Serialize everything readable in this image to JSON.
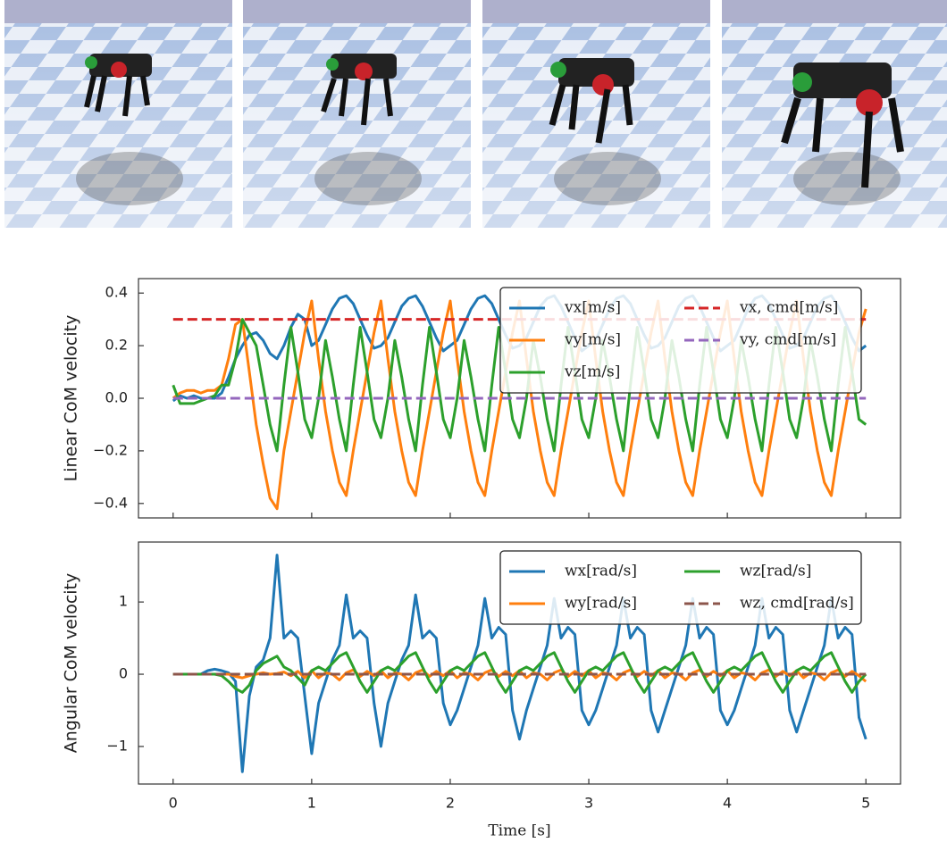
{
  "chart_data": [
    {
      "type": "line",
      "y_label": "Linear CoM velocity",
      "x": [
        0,
        0.05,
        0.1,
        0.15,
        0.2,
        0.25,
        0.3,
        0.35,
        0.4,
        0.45,
        0.5,
        0.55,
        0.6,
        0.65,
        0.7,
        0.75,
        0.8,
        0.85,
        0.9,
        0.95,
        1,
        1.05,
        1.1,
        1.15,
        1.2,
        1.25,
        1.3,
        1.35,
        1.4,
        1.45,
        1.5,
        1.55,
        1.6,
        1.65,
        1.7,
        1.75,
        1.8,
        1.85,
        1.9,
        1.95,
        2,
        2.05,
        2.1,
        2.15,
        2.2,
        2.25,
        2.3,
        2.35,
        2.4,
        2.45,
        2.5,
        2.55,
        2.6,
        2.65,
        2.7,
        2.75,
        2.8,
        2.85,
        2.9,
        2.95,
        3,
        3.05,
        3.1,
        3.15,
        3.2,
        3.25,
        3.3,
        3.35,
        3.4,
        3.45,
        3.5,
        3.55,
        3.6,
        3.65,
        3.7,
        3.75,
        3.8,
        3.85,
        3.9,
        3.95,
        4,
        4.05,
        4.1,
        4.15,
        4.2,
        4.25,
        4.3,
        4.35,
        4.4,
        4.45,
        4.5,
        4.55,
        4.6,
        4.65,
        4.7,
        4.75,
        4.8,
        4.85,
        4.9,
        4.95,
        5
      ],
      "series": [
        {
          "name": "vx[m/s]",
          "color": "#1f77b4",
          "values": [
            -0.01,
            0.01,
            0.0,
            0.01,
            0.0,
            0.0,
            0.0,
            0.02,
            0.08,
            0.15,
            0.2,
            0.24,
            0.25,
            0.22,
            0.17,
            0.15,
            0.2,
            0.27,
            0.32,
            0.3,
            0.2,
            0.22,
            0.28,
            0.34,
            0.38,
            0.39,
            0.36,
            0.3,
            0.24,
            0.19,
            0.2,
            0.23,
            0.29,
            0.35,
            0.38,
            0.39,
            0.35,
            0.29,
            0.23,
            0.18,
            0.2,
            0.22,
            0.28,
            0.34,
            0.38,
            0.39,
            0.36,
            0.3,
            0.24,
            0.19,
            0.2,
            0.23,
            0.29,
            0.35,
            0.38,
            0.39,
            0.35,
            0.29,
            0.23,
            0.18,
            0.2,
            0.22,
            0.28,
            0.34,
            0.38,
            0.39,
            0.36,
            0.3,
            0.24,
            0.19,
            0.2,
            0.23,
            0.29,
            0.35,
            0.38,
            0.39,
            0.35,
            0.29,
            0.23,
            0.18,
            0.2,
            0.22,
            0.28,
            0.34,
            0.38,
            0.39,
            0.36,
            0.3,
            0.24,
            0.19,
            0.2,
            0.23,
            0.29,
            0.35,
            0.38,
            0.39,
            0.35,
            0.29,
            0.23,
            0.18,
            0.2
          ]
        },
        {
          "name": "vy[m/s]",
          "color": "#ff7f0e",
          "values": [
            0.0,
            0.02,
            0.03,
            0.03,
            0.02,
            0.03,
            0.03,
            0.05,
            0.15,
            0.28,
            0.3,
            0.1,
            -0.1,
            -0.25,
            -0.38,
            -0.42,
            -0.2,
            -0.05,
            0.1,
            0.25,
            0.37,
            0.15,
            -0.05,
            -0.2,
            -0.32,
            -0.37,
            -0.2,
            -0.05,
            0.1,
            0.25,
            0.37,
            0.15,
            -0.05,
            -0.2,
            -0.32,
            -0.37,
            -0.2,
            -0.05,
            0.1,
            0.25,
            0.37,
            0.15,
            -0.05,
            -0.2,
            -0.32,
            -0.37,
            -0.2,
            -0.05,
            0.1,
            0.25,
            0.37,
            0.15,
            -0.05,
            -0.2,
            -0.32,
            -0.37,
            -0.2,
            -0.05,
            0.1,
            0.25,
            0.37,
            0.15,
            -0.05,
            -0.2,
            -0.32,
            -0.37,
            -0.2,
            -0.05,
            0.1,
            0.25,
            0.37,
            0.15,
            -0.05,
            -0.2,
            -0.32,
            -0.37,
            -0.2,
            -0.05,
            0.1,
            0.25,
            0.37,
            0.15,
            -0.05,
            -0.2,
            -0.32,
            -0.37,
            -0.2,
            -0.05,
            0.1,
            0.25,
            0.37,
            0.15,
            -0.05,
            -0.2,
            -0.32,
            -0.37,
            -0.2,
            -0.05,
            0.1,
            0.25,
            0.34
          ]
        },
        {
          "name": "vz[m/s]",
          "color": "#2ca02c",
          "values": [
            0.05,
            -0.02,
            -0.02,
            -0.02,
            -0.01,
            0.0,
            0.01,
            0.05,
            0.05,
            0.15,
            0.3,
            0.25,
            0.2,
            0.05,
            -0.1,
            -0.2,
            0.05,
            0.27,
            0.1,
            -0.08,
            -0.15,
            0.0,
            0.22,
            0.08,
            -0.08,
            -0.2,
            0.05,
            0.27,
            0.1,
            -0.08,
            -0.15,
            0.0,
            0.22,
            0.08,
            -0.08,
            -0.2,
            0.05,
            0.27,
            0.1,
            -0.08,
            -0.15,
            0.0,
            0.22,
            0.08,
            -0.08,
            -0.2,
            0.05,
            0.27,
            0.1,
            -0.08,
            -0.15,
            0.0,
            0.22,
            0.08,
            -0.08,
            -0.2,
            0.05,
            0.27,
            0.1,
            -0.08,
            -0.15,
            0.0,
            0.22,
            0.08,
            -0.08,
            -0.2,
            0.05,
            0.27,
            0.1,
            -0.08,
            -0.15,
            0.0,
            0.22,
            0.08,
            -0.08,
            -0.2,
            0.05,
            0.27,
            0.1,
            -0.08,
            -0.15,
            0.0,
            0.22,
            0.08,
            -0.08,
            -0.2,
            0.05,
            0.27,
            0.1,
            -0.08,
            -0.15,
            0.0,
            0.22,
            0.08,
            -0.08,
            -0.2,
            0.05,
            0.27,
            0.1,
            -0.08,
            -0.1
          ]
        },
        {
          "name": "vx, cmd[m/s]",
          "color": "#d62728",
          "linestyle": "dashed",
          "x": [
            0,
            5
          ],
          "values": [
            0.3,
            0.3
          ]
        },
        {
          "name": "vy, cmd[m/s]",
          "color": "#9467bd",
          "linestyle": "dashed",
          "x": [
            0,
            5
          ],
          "values": [
            0,
            0
          ]
        }
      ],
      "xlim": [
        -0.25,
        5.25
      ],
      "xticks": [
        0,
        1,
        2,
        3,
        4,
        5
      ],
      "show_xticklabels": false,
      "ylim": [
        -0.455,
        0.455
      ],
      "yticks": [
        {
          "value": -0.4,
          "label": "−0.4"
        },
        {
          "value": -0.2,
          "label": "−0.2"
        },
        {
          "value": 0,
          "label": "0.0"
        },
        {
          "value": 0.2,
          "label": "0.2"
        },
        {
          "value": 0.4,
          "label": "0.4"
        }
      ],
      "legend": "upper right",
      "legend_columns": 2
    },
    {
      "type": "line",
      "y_label": "Angular CoM velocity",
      "x_label": "Time [s]",
      "x": [
        0,
        0.05,
        0.1,
        0.15,
        0.2,
        0.25,
        0.3,
        0.35,
        0.4,
        0.45,
        0.5,
        0.55,
        0.6,
        0.65,
        0.7,
        0.75,
        0.8,
        0.85,
        0.9,
        0.95,
        1,
        1.05,
        1.1,
        1.15,
        1.2,
        1.25,
        1.3,
        1.35,
        1.4,
        1.45,
        1.5,
        1.55,
        1.6,
        1.65,
        1.7,
        1.75,
        1.8,
        1.85,
        1.9,
        1.95,
        2,
        2.05,
        2.1,
        2.15,
        2.2,
        2.25,
        2.3,
        2.35,
        2.4,
        2.45,
        2.5,
        2.55,
        2.6,
        2.65,
        2.7,
        2.75,
        2.8,
        2.85,
        2.9,
        2.95,
        3,
        3.05,
        3.1,
        3.15,
        3.2,
        3.25,
        3.3,
        3.35,
        3.4,
        3.45,
        3.5,
        3.55,
        3.6,
        3.65,
        3.7,
        3.75,
        3.8,
        3.85,
        3.9,
        3.95,
        4,
        4.05,
        4.1,
        4.15,
        4.2,
        4.25,
        4.3,
        4.35,
        4.4,
        4.45,
        4.5,
        4.55,
        4.6,
        4.65,
        4.7,
        4.75,
        4.8,
        4.85,
        4.9,
        4.95,
        5
      ],
      "series": [
        {
          "name": "wx[rad/s]",
          "color": "#1f77b4",
          "values": [
            0,
            0,
            0,
            0,
            0,
            0.05,
            0.07,
            0.05,
            0.02,
            -0.1,
            -1.35,
            -0.3,
            0.1,
            0.2,
            0.5,
            1.65,
            0.5,
            0.6,
            0.5,
            -0.3,
            -1.1,
            -0.4,
            -0.1,
            0.2,
            0.4,
            1.1,
            0.5,
            0.6,
            0.5,
            -0.4,
            -1.0,
            -0.4,
            -0.1,
            0.2,
            0.4,
            1.1,
            0.5,
            0.6,
            0.5,
            -0.4,
            -0.7,
            -0.5,
            -0.2,
            0.1,
            0.4,
            1.05,
            0.5,
            0.65,
            0.55,
            -0.5,
            -0.9,
            -0.5,
            -0.2,
            0.1,
            0.4,
            1.05,
            0.5,
            0.65,
            0.55,
            -0.5,
            -0.7,
            -0.5,
            -0.2,
            0.1,
            0.4,
            1.05,
            0.5,
            0.65,
            0.55,
            -0.5,
            -0.8,
            -0.5,
            -0.2,
            0.1,
            0.4,
            1.05,
            0.5,
            0.65,
            0.55,
            -0.5,
            -0.7,
            -0.5,
            -0.2,
            0.1,
            0.4,
            1.05,
            0.5,
            0.65,
            0.55,
            -0.5,
            -0.8,
            -0.5,
            -0.2,
            0.1,
            0.4,
            1.05,
            0.5,
            0.65,
            0.55,
            -0.6,
            -0.9
          ]
        },
        {
          "name": "wy[rad/s]",
          "color": "#ff7f0e",
          "values": [
            0,
            0,
            0,
            0,
            0,
            0,
            0,
            0,
            0,
            -0.03,
            -0.05,
            -0.02,
            0.0,
            0.02,
            0.0,
            0.01,
            0.03,
            -0.02,
            0.04,
            -0.05,
            0.05,
            -0.05,
            0.02,
            0.0,
            -0.08,
            0.02,
            0.06,
            -0.03,
            0.04,
            -0.02,
            0.05,
            -0.05,
            0.02,
            0.0,
            -0.08,
            0.02,
            0.06,
            -0.03,
            0.04,
            -0.02,
            0.05,
            -0.05,
            0.02,
            0.0,
            -0.08,
            0.02,
            0.06,
            -0.03,
            0.04,
            -0.02,
            0.05,
            -0.05,
            0.02,
            0.0,
            -0.08,
            0.02,
            0.06,
            -0.03,
            0.04,
            -0.02,
            0.05,
            -0.05,
            0.02,
            0.0,
            -0.08,
            0.02,
            0.06,
            -0.03,
            0.04,
            -0.02,
            0.05,
            -0.05,
            0.02,
            0.0,
            -0.08,
            0.02,
            0.06,
            -0.03,
            0.04,
            -0.02,
            0.05,
            -0.05,
            0.02,
            0.0,
            -0.08,
            0.02,
            0.06,
            -0.03,
            0.04,
            -0.02,
            0.05,
            -0.05,
            0.02,
            0.0,
            -0.08,
            0.02,
            0.06,
            -0.03,
            0.04,
            -0.02,
            -0.1
          ]
        },
        {
          "name": "wz[rad/s]",
          "color": "#2ca02c",
          "values": [
            0,
            0,
            0,
            0,
            0,
            0,
            0,
            -0.02,
            -0.1,
            -0.2,
            -0.25,
            -0.15,
            0.05,
            0.15,
            0.2,
            0.25,
            0.1,
            0.05,
            -0.05,
            -0.15,
            0.05,
            0.1,
            0.05,
            0.15,
            0.25,
            0.3,
            0.1,
            -0.1,
            -0.25,
            -0.1,
            0.05,
            0.1,
            0.05,
            0.15,
            0.25,
            0.3,
            0.1,
            -0.1,
            -0.25,
            -0.1,
            0.05,
            0.1,
            0.05,
            0.15,
            0.25,
            0.3,
            0.1,
            -0.1,
            -0.25,
            -0.1,
            0.05,
            0.1,
            0.05,
            0.15,
            0.25,
            0.3,
            0.1,
            -0.1,
            -0.25,
            -0.1,
            0.05,
            0.1,
            0.05,
            0.15,
            0.25,
            0.3,
            0.1,
            -0.1,
            -0.25,
            -0.1,
            0.05,
            0.1,
            0.05,
            0.15,
            0.25,
            0.3,
            0.1,
            -0.1,
            -0.25,
            -0.1,
            0.05,
            0.1,
            0.05,
            0.15,
            0.25,
            0.3,
            0.1,
            -0.1,
            -0.25,
            -0.1,
            0.05,
            0.1,
            0.05,
            0.15,
            0.25,
            0.3,
            0.1,
            -0.1,
            -0.25,
            -0.1,
            0.0
          ]
        },
        {
          "name": "wz, cmd[rad/s]",
          "color": "#8c564b",
          "linestyle": "dashed",
          "x": [
            0,
            5
          ],
          "values": [
            0,
            0
          ]
        }
      ],
      "xlim": [
        -0.25,
        5.25
      ],
      "xticks": [
        0,
        1,
        2,
        3,
        4,
        5
      ],
      "ylim": [
        -1.52,
        1.83
      ],
      "yticks": [
        {
          "value": -1,
          "label": "−1"
        },
        0,
        1
      ],
      "legend": "upper right",
      "legend_columns": 2
    }
  ]
}
